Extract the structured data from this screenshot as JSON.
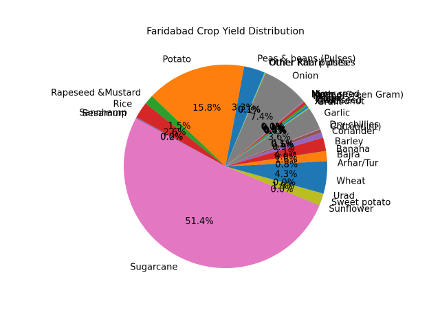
{
  "chart_data": {
    "type": "pie",
    "title": "Faridabad Crop Yield Distribution",
    "start_angle_deg": 0,
    "direction": "counterclockwise",
    "slices": [
      {
        "label": "Arhar/Tur",
        "pct": "0.8%",
        "value": 0.8,
        "color": "#1f77b4"
      },
      {
        "label": "Bajra",
        "pct": "1.6%",
        "value": 1.6,
        "color": "#ff7f0e"
      },
      {
        "label": "Banana",
        "pct": "0.0%",
        "value": 0.04,
        "color": "#2ca02c"
      },
      {
        "label": "Barley",
        "pct": "2.1%",
        "value": 2.1,
        "color": "#d62728"
      },
      {
        "label": "Coriander",
        "pct": "0.9%",
        "value": 0.9,
        "color": "#9467bd"
      },
      {
        "label": "Cotton(lint)",
        "pct": "0.5%",
        "value": 0.5,
        "color": "#8c564b"
      },
      {
        "label": "Dry chillies",
        "pct": "0.1%",
        "value": 0.1,
        "color": "#e377c2"
      },
      {
        "label": "Garlic",
        "pct": "3.6%",
        "value": 3.6,
        "color": "#7f7f7f"
      },
      {
        "label": "Gram",
        "pct": "0.1%",
        "value": 0.1,
        "color": "#bcbd22"
      },
      {
        "label": "Groundnut",
        "pct": "0.1%",
        "value": 0.1,
        "color": "#17becf"
      },
      {
        "label": "Guar seed",
        "pct": "0.3%",
        "value": 0.3,
        "color": "#1f77b4"
      },
      {
        "label": "Jowar",
        "pct": "0.0%",
        "value": 0.04,
        "color": "#ff7f0e"
      },
      {
        "label": "Maize",
        "pct": "0.3%",
        "value": 0.3,
        "color": "#2ca02c"
      },
      {
        "label": "Masoor",
        "pct": "0.4%",
        "value": 0.4,
        "color": "#d62728"
      },
      {
        "label": "Moong(Green Gram)",
        "pct": "0.1%",
        "value": 0.1,
        "color": "#9467bd"
      },
      {
        "label": "Moth",
        "pct": "0.1%",
        "value": 0.1,
        "color": "#8c564b"
      },
      {
        "label": "Niger seed",
        "pct": "0.0%",
        "value": 0.04,
        "color": "#e377c2"
      },
      {
        "label": "Onion",
        "pct": "7.4%",
        "value": 7.4,
        "color": "#7f7f7f"
      },
      {
        "label": "Other Kharif pulses",
        "pct": "0.1%",
        "value": 0.1,
        "color": "#bcbd22"
      },
      {
        "label": "Other Rabi pulses",
        "pct": "0.1%",
        "value": 0.1,
        "color": "#17becf"
      },
      {
        "label": "Peas & beans (Pulses)",
        "pct": "3.3%",
        "value": 3.3,
        "color": "#1f77b4"
      },
      {
        "label": "Potato",
        "pct": "15.8%",
        "value": 15.8,
        "color": "#ff7f0e"
      },
      {
        "label": "Rapeseed &Mustard",
        "pct": "1.5%",
        "value": 1.5,
        "color": "#2ca02c"
      },
      {
        "label": "Rice",
        "pct": "2.6%",
        "value": 2.6,
        "color": "#d62728"
      },
      {
        "label": "Sannhamp",
        "pct": "0.2%",
        "value": 0.2,
        "color": "#9467bd"
      },
      {
        "label": "Sesamum",
        "pct": "0.0%",
        "value": 0.04,
        "color": "#8c564b"
      },
      {
        "label": "Sugarcane",
        "pct": "51.4%",
        "value": 51.4,
        "color": "#e377c2"
      },
      {
        "label": "Sunflower",
        "pct": "0.0%",
        "value": 0.04,
        "color": "#7f7f7f"
      },
      {
        "label": "Sweet potato",
        "pct": "1.9%",
        "value": 1.9,
        "color": "#bcbd22"
      },
      {
        "label": "Urad",
        "pct": "0.0%",
        "value": 0.04,
        "color": "#17becf"
      },
      {
        "label": "Wheat",
        "pct": "4.3%",
        "value": 4.3,
        "color": "#1f77b4"
      }
    ]
  }
}
